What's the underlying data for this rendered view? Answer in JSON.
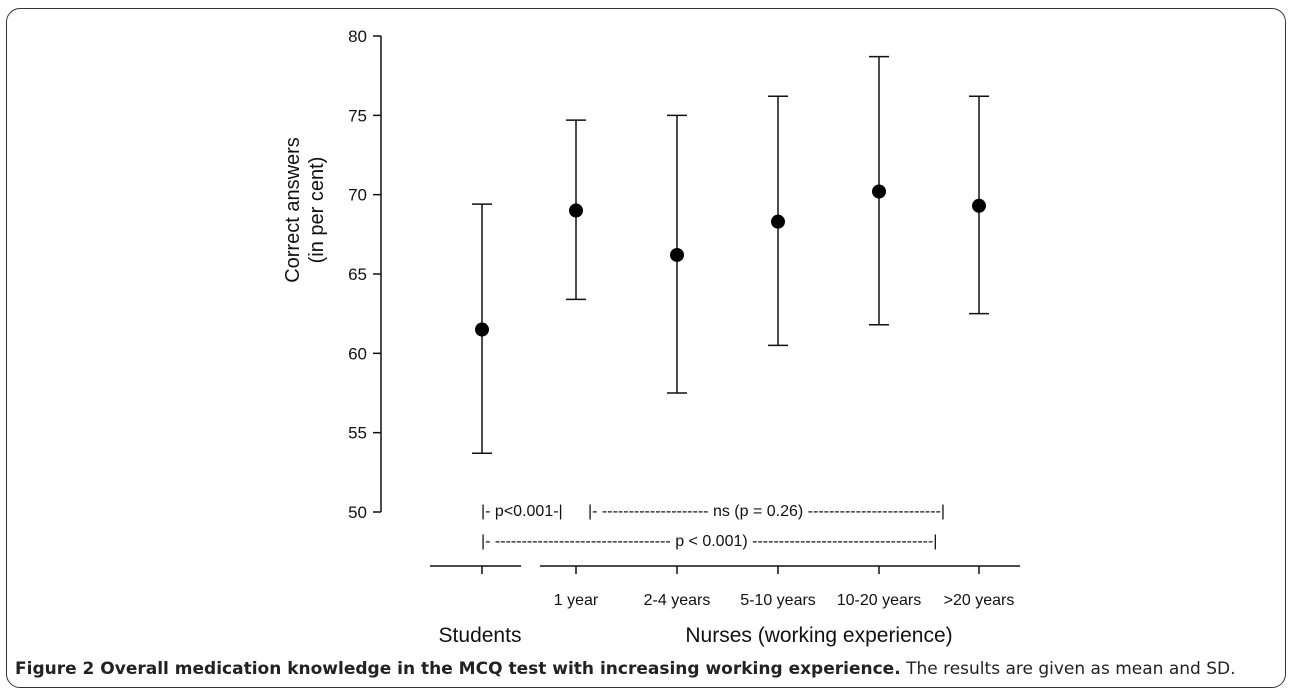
{
  "chart_data": {
    "type": "scatter",
    "ylabel_line1": "Correct answers",
    "ylabel_line2": "(in per cent)",
    "ylim": [
      50,
      80
    ],
    "yticks": [
      50,
      55,
      60,
      65,
      70,
      75,
      80
    ],
    "categories": [
      "",
      "1 year",
      "2-4 years",
      "5-10 years",
      "10-20 years",
      ">20 years"
    ],
    "group_labels": [
      "Students",
      "Nurses (working experience)"
    ],
    "points": [
      {
        "category": "Students",
        "mean": 61.5,
        "upper": 69.4,
        "lower": 53.7
      },
      {
        "category": "1 year",
        "mean": 69.0,
        "upper": 74.7,
        "lower": 63.4
      },
      {
        "category": "2-4 years",
        "mean": 66.2,
        "upper": 75.0,
        "lower": 57.5
      },
      {
        "category": "5-10 years",
        "mean": 68.3,
        "upper": 76.2,
        "lower": 60.5
      },
      {
        "category": "10-20 years",
        "mean": 70.2,
        "upper": 78.7,
        "lower": 61.8
      },
      {
        "category": ">20 years",
        "mean": 69.3,
        "upper": 76.2,
        "lower": 62.5
      }
    ],
    "annotations": [
      "|- p<0.001-|",
      "|- -------------------- ns (p = 0.26) -------------------------|",
      "|- --------------------------------- p < 0.001) ----------------------------------|"
    ],
    "grid": false,
    "legend": "none"
  },
  "caption": {
    "bold": "Figure 2 Overall medication knowledge in the MCQ test with increasing working experience.",
    "text": " The results are given as mean and SD."
  }
}
